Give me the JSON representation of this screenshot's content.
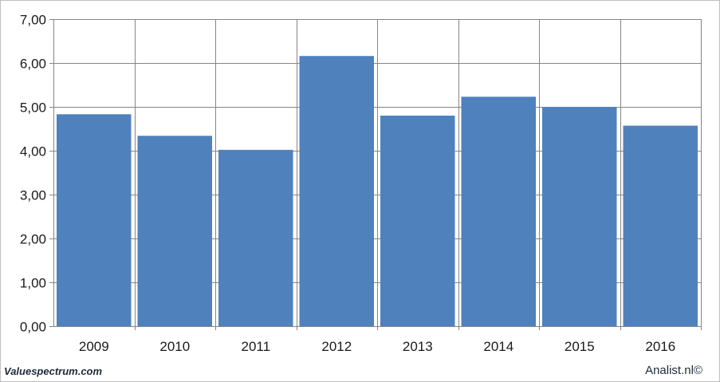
{
  "chart_data": {
    "type": "bar",
    "title": "",
    "xlabel": "",
    "ylabel": "",
    "categories": [
      "2009",
      "2010",
      "2011",
      "2012",
      "2013",
      "2014",
      "2015",
      "2016"
    ],
    "values": [
      4.83,
      4.34,
      4.02,
      6.16,
      4.8,
      5.23,
      5.0,
      4.57
    ],
    "ylim": [
      0,
      7
    ],
    "yticks": [
      0,
      1,
      2,
      3,
      4,
      5,
      6,
      7
    ],
    "ytick_labels": [
      "0,00",
      "1,00",
      "2,00",
      "3,00",
      "4,00",
      "5,00",
      "6,00",
      "7,00"
    ],
    "grid": true,
    "legend": "none",
    "bar_color": "#4f81bd",
    "grid_color": "#868686"
  },
  "footer": {
    "left": "Valuespectrum.com",
    "right": "Analist.nl©"
  }
}
